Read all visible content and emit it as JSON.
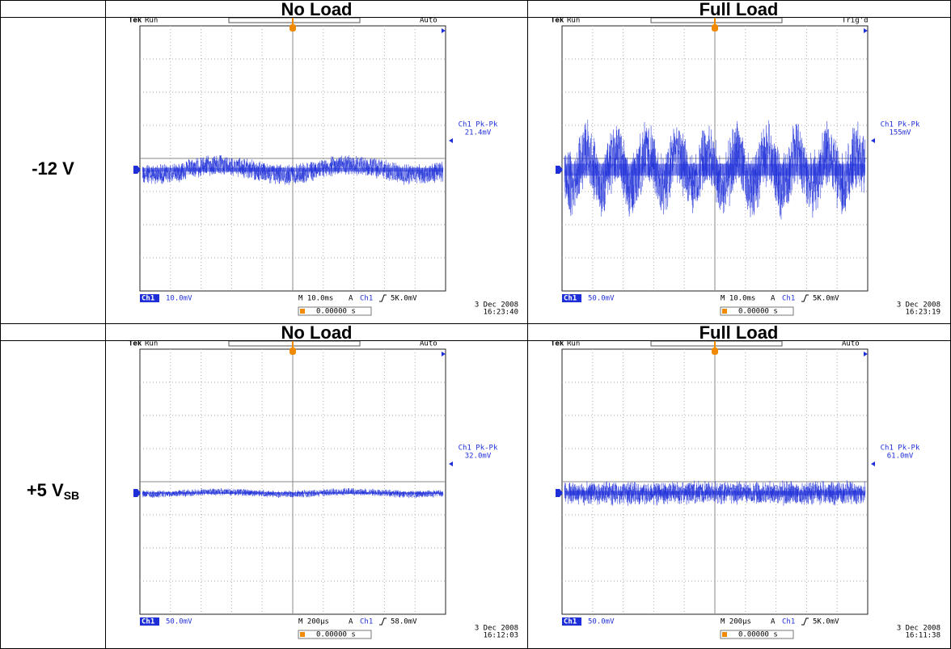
{
  "columns": [
    "No Load",
    "Full Load"
  ],
  "rows": [
    {
      "label": {
        "main": "-12 V"
      },
      "cells": [
        {
          "header": "No Load",
          "scope": {
            "brand": "Tek",
            "status": "Run",
            "mode": "Auto",
            "measure_label": "Ch1 Pk-Pk",
            "measure_value": "21.4mV",
            "channel": "Ch1",
            "scale": "10.0mV",
            "timebase": "M 10.0ms",
            "trig_source": "A",
            "trig_channel": "Ch1",
            "trig_level": "5K.0mV",
            "offset": "0.00000 s",
            "date": "3 Dec 2008",
            "time": "16:23:40"
          }
        },
        {
          "header": "Full Load",
          "scope": {
            "brand": "Tek",
            "status": "Run",
            "mode": "Trig'd",
            "measure_label": "Ch1 Pk-Pk",
            "measure_value": "155mV",
            "channel": "Ch1",
            "scale": "50.0mV",
            "timebase": "M 10.0ms",
            "trig_source": "A",
            "trig_channel": "Ch1",
            "trig_level": "5K.0mV",
            "offset": "0.00000 s",
            "date": "3 Dec 2008",
            "time": "16:23:19"
          }
        }
      ]
    },
    {
      "label": {
        "main": "+5 V",
        "sub": "SB"
      },
      "cells": [
        {
          "header": "No Load",
          "scope": {
            "brand": "Tek",
            "status": "Run",
            "mode": "Auto",
            "measure_label": "Ch1 Pk-Pk",
            "measure_value": "32.0mV",
            "channel": "Ch1",
            "scale": "50.0mV",
            "timebase": "M 200µs",
            "trig_source": "A",
            "trig_channel": "Ch1",
            "trig_level": "58.0mV",
            "offset": "0.00000 s",
            "date": "3 Dec 2008",
            "time": "16:12:03"
          }
        },
        {
          "header": "Full Load",
          "scope": {
            "brand": "Tek",
            "status": "Run",
            "mode": "Auto",
            "measure_label": "Ch1 Pk-Pk",
            "measure_value": "61.0mV",
            "channel": "Ch1",
            "scale": "50.0mV",
            "timebase": "M 200µs",
            "trig_source": "A",
            "trig_channel": "Ch1",
            "trig_level": "5K.0mV",
            "offset": "0.00000 s",
            "date": "3 Dec 2008",
            "time": "16:11:38"
          }
        }
      ]
    }
  ]
}
